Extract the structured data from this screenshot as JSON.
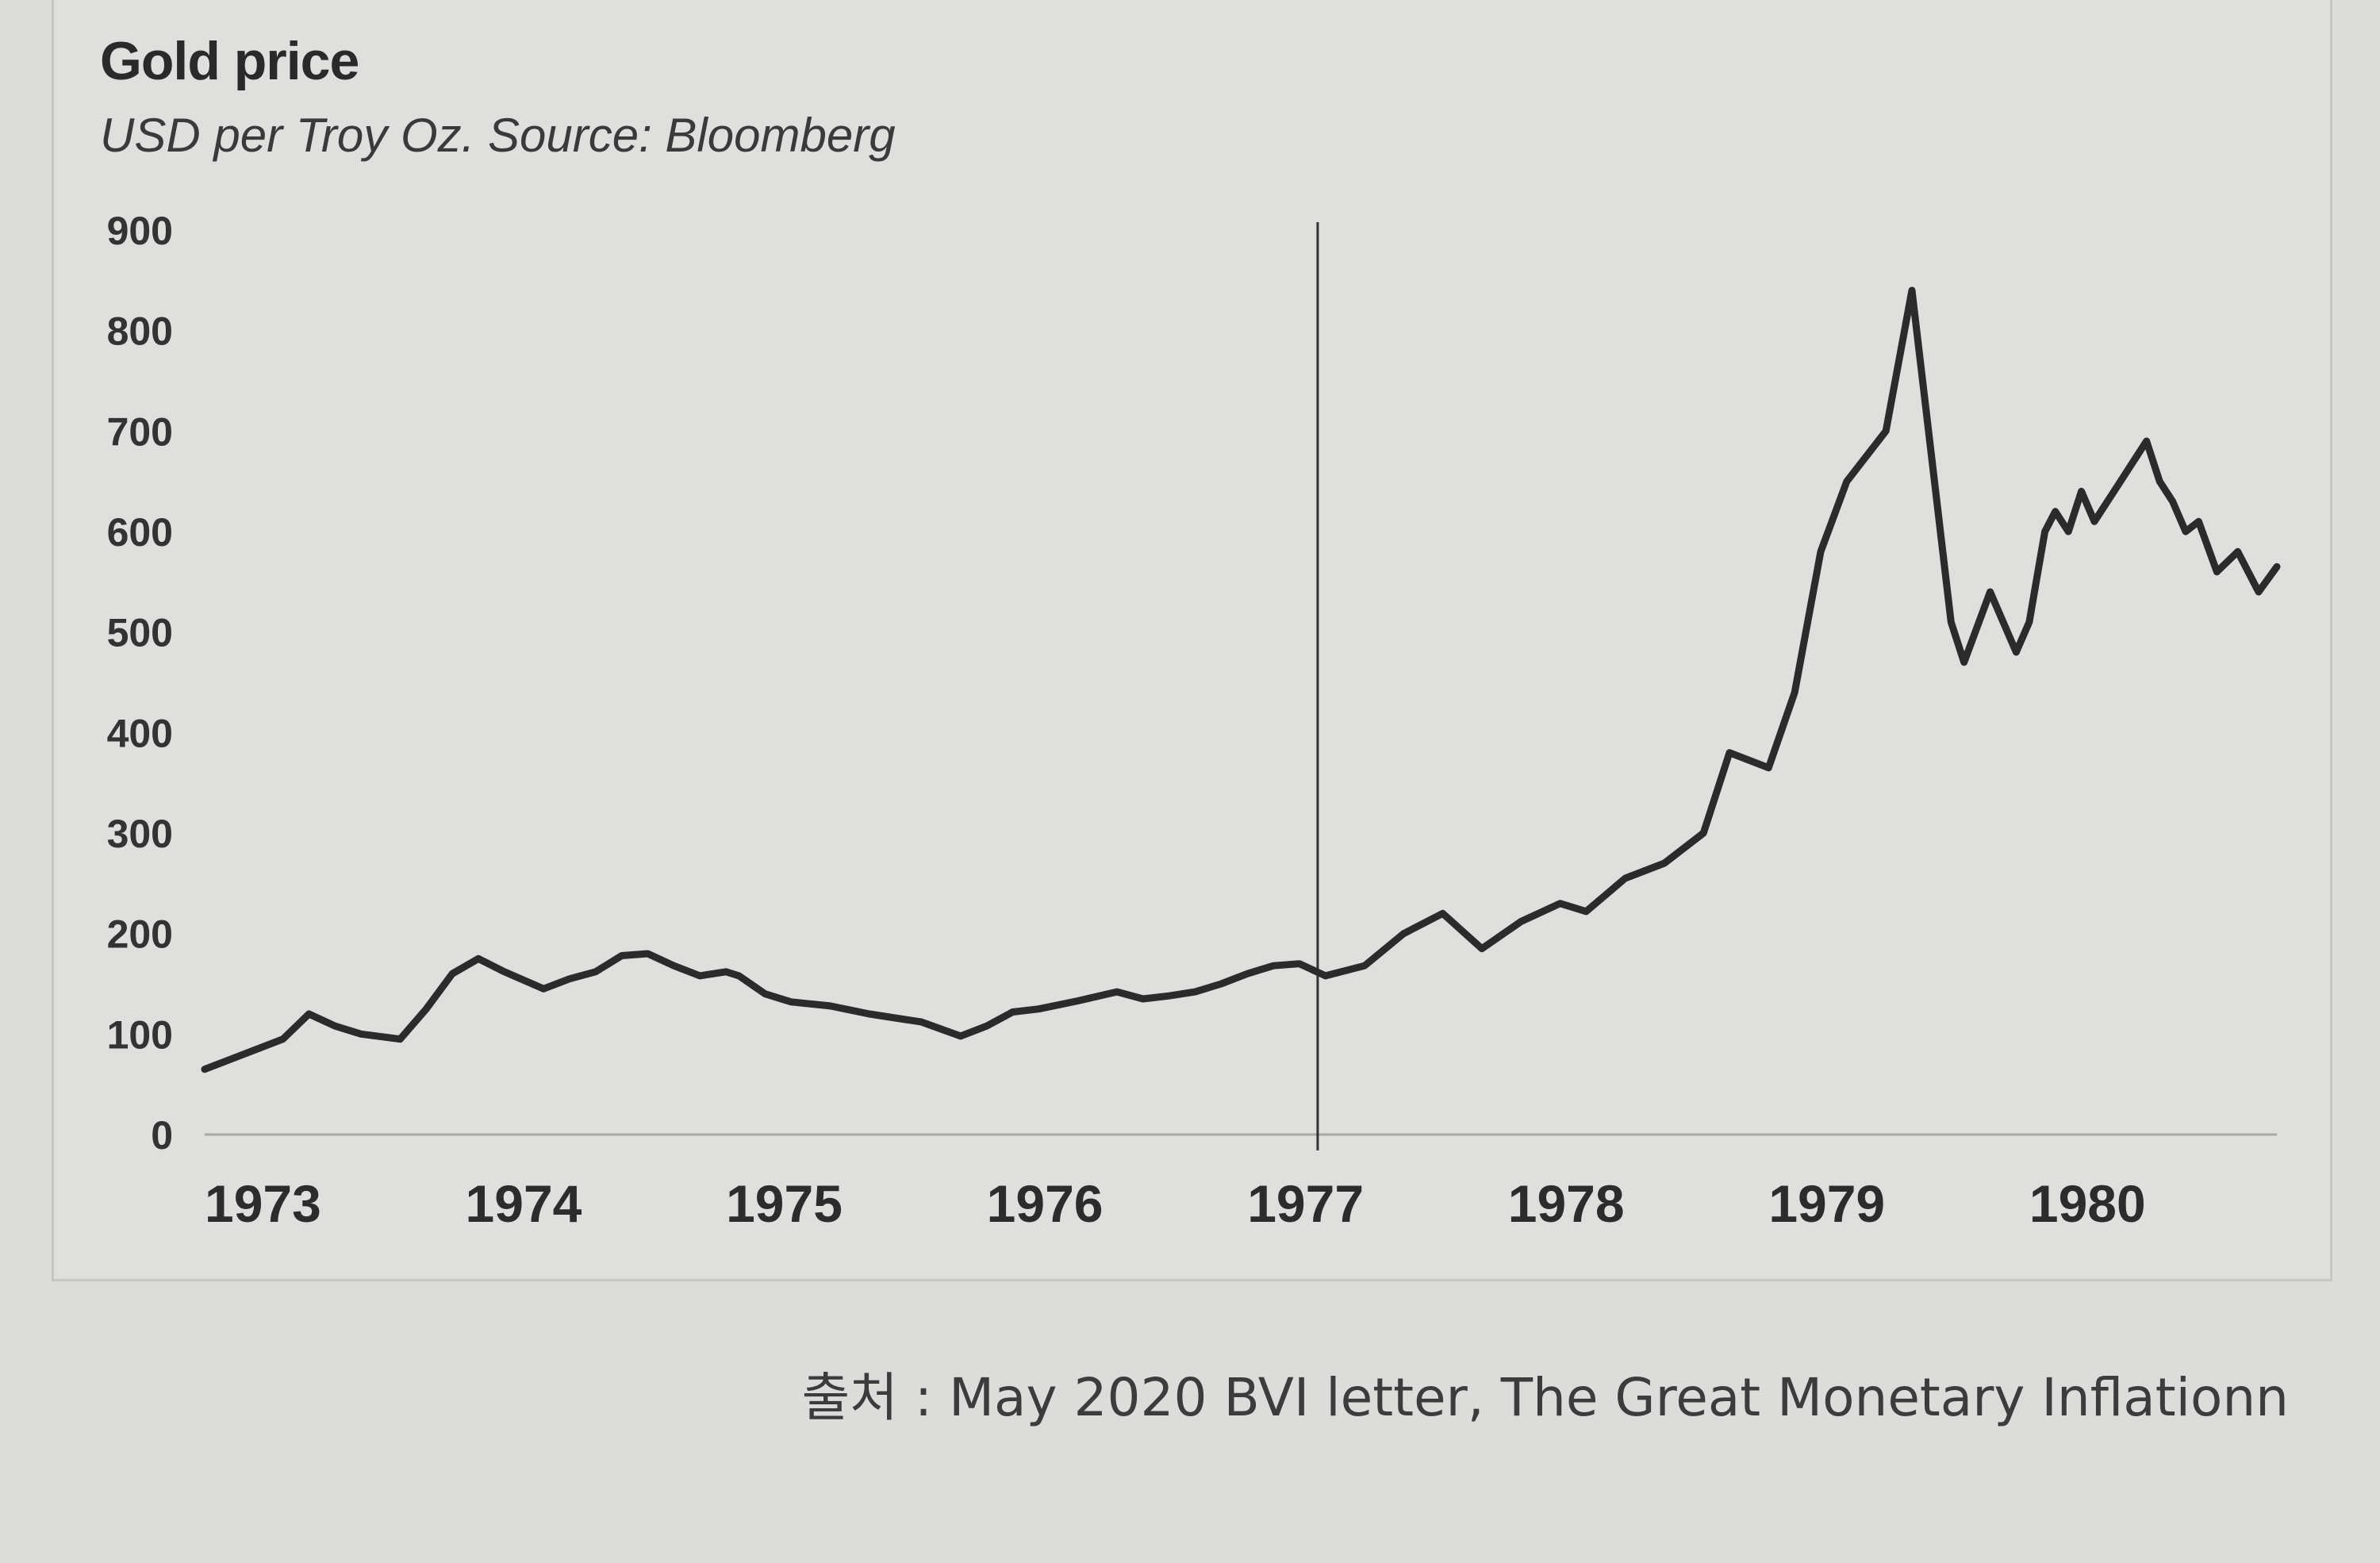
{
  "chart_data": {
    "type": "line",
    "title": "Gold price",
    "subtitle": "USD per Troy Oz. Source: Bloomberg",
    "xlabel": "",
    "ylabel": "",
    "ylim": [
      0,
      900
    ],
    "xlim": [
      1973.0,
      1980.95
    ],
    "y_ticks": [
      0,
      100,
      200,
      300,
      400,
      500,
      600,
      700,
      800,
      900
    ],
    "x_ticks": [
      "1973",
      "1974",
      "1975",
      "1976",
      "1977",
      "1978",
      "1979",
      "1980"
    ],
    "x_tick_values": [
      1973,
      1974,
      1975,
      1976,
      1977,
      1978,
      1979,
      1980
    ],
    "grid": false,
    "reference_line_x": 1977.27,
    "series": [
      {
        "name": "Gold price",
        "x": [
          1973.0,
          1973.15,
          1973.3,
          1973.4,
          1973.5,
          1973.6,
          1973.75,
          1973.85,
          1973.95,
          1974.05,
          1974.15,
          1974.3,
          1974.4,
          1974.5,
          1974.6,
          1974.7,
          1974.8,
          1974.9,
          1975.0,
          1975.05,
          1975.15,
          1975.25,
          1975.4,
          1975.55,
          1975.75,
          1975.9,
          1976.0,
          1976.1,
          1976.2,
          1976.35,
          1976.5,
          1976.6,
          1976.7,
          1976.8,
          1976.9,
          1977.0,
          1977.1,
          1977.2,
          1977.3,
          1977.45,
          1977.6,
          1977.75,
          1977.9,
          1978.05,
          1978.2,
          1978.3,
          1978.45,
          1978.6,
          1978.75,
          1978.85,
          1979.0,
          1979.1,
          1979.2,
          1979.3,
          1979.45,
          1979.55,
          1979.65,
          1979.7,
          1979.75,
          1979.85,
          1979.95,
          1980.0,
          1980.03,
          1980.06,
          1980.1,
          1980.15,
          1980.2,
          1980.25,
          1980.35,
          1980.45,
          1980.5,
          1980.55,
          1980.6,
          1980.65,
          1980.72,
          1980.8,
          1980.88,
          1980.95
        ],
        "values": [
          65,
          80,
          95,
          120,
          108,
          100,
          95,
          125,
          160,
          175,
          162,
          145,
          155,
          162,
          178,
          180,
          168,
          158,
          162,
          158,
          140,
          132,
          128,
          120,
          112,
          98,
          108,
          122,
          125,
          133,
          142,
          135,
          138,
          142,
          150,
          160,
          168,
          170,
          158,
          168,
          200,
          220,
          185,
          212,
          230,
          222,
          255,
          270,
          300,
          380,
          365,
          440,
          580,
          650,
          700,
          840,
          620,
          510,
          470,
          540,
          480,
          510,
          555,
          600,
          620,
          600,
          640,
          610,
          650,
          690,
          650,
          630,
          600,
          610,
          560,
          580,
          540,
          565
        ]
      }
    ]
  },
  "source_note": "출처 : May 2020 BVI letter, The Great Monetary Inflationn"
}
